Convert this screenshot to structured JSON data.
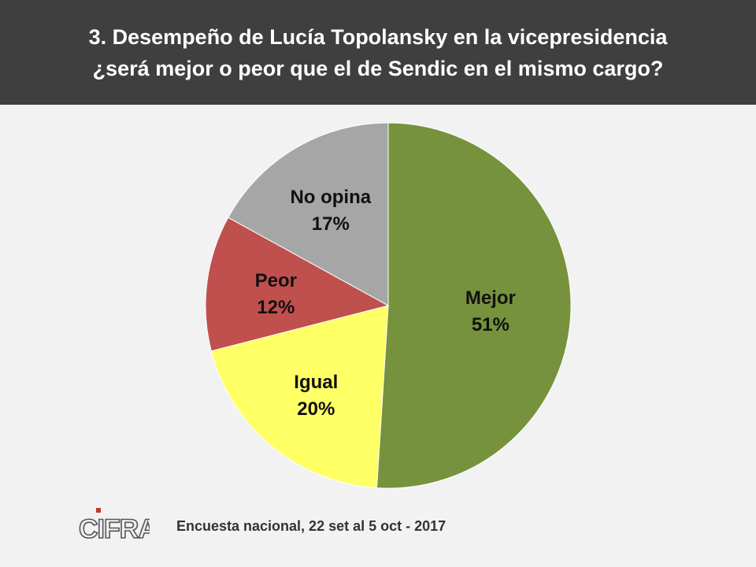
{
  "header": {
    "title_line1": "3. Desempeño de Lucía Topolansky en la vicepresidencia",
    "title_line2": "¿será mejor o peor que el de Sendic en el mismo cargo?"
  },
  "chart_data": {
    "type": "pie",
    "title": "3. Desempeño de Lucía Topolansky en la vicepresidencia ¿será mejor o peor que el de Sendic en el mismo cargo?",
    "categories": [
      "Mejor",
      "Igual",
      "Peor",
      "No opina"
    ],
    "values": [
      51,
      20,
      12,
      17
    ],
    "value_labels": [
      "51%",
      "20%",
      "12%",
      "17%"
    ],
    "colors": [
      "#76923c",
      "#ffff66",
      "#c0504d",
      "#a6a6a6"
    ],
    "start": "12 o'clock",
    "direction": "clockwise"
  },
  "footer": {
    "logo_text": "CIFRA",
    "source": "Encuesta nacional,  22 set al 5 oct - 2017",
    "logo_accent_color": "#c0392b"
  }
}
